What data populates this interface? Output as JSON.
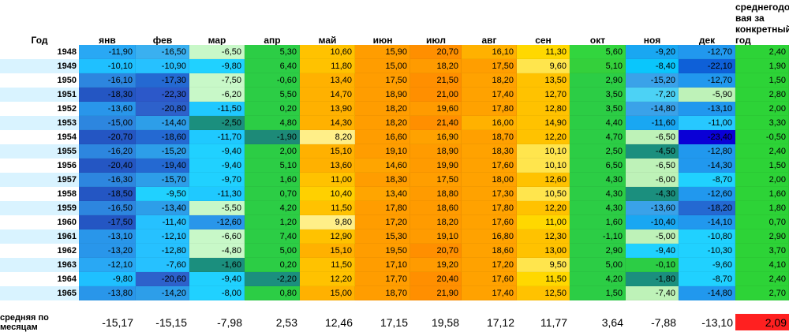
{
  "headers": {
    "year": "Год",
    "months": [
      "янв",
      "фев",
      "мар",
      "апр",
      "май",
      "июн",
      "июл",
      "авг",
      "сен",
      "окт",
      "ноя",
      "дек"
    ],
    "annual_lines": [
      "среднегодо",
      "вая за",
      "конкретный",
      "год"
    ]
  },
  "rows": [
    {
      "year": "1948",
      "values": [
        "-11,90",
        "-16,50",
        "-6,50",
        "5,30",
        "10,60",
        "15,90",
        "20,70",
        "16,10",
        "11,30",
        "5,60",
        "-9,20",
        "-12,70"
      ],
      "annual": "2,40",
      "colors": [
        "#29a8f4",
        "#3ab0f0",
        "#c8f8c8",
        "#2ccd45",
        "#ffc200",
        "#ff9d00",
        "#ff8f00",
        "#ffb100",
        "#ffd800",
        "#32d53e",
        "#19a7f2",
        "#2198ee"
      ],
      "annual_color": "#2dd337"
    },
    {
      "year": "1949",
      "values": [
        "-10,10",
        "-10,90",
        "-9,80",
        "6,40",
        "11,80",
        "15,00",
        "18,20",
        "17,50",
        "9,60",
        "5,10",
        "-8,40",
        "-22,10"
      ],
      "annual": "1,90",
      "colors": [
        "#1fc0ff",
        "#26c1ff",
        "#20d1ff",
        "#2ccd45",
        "#ffc200",
        "#ff9d00",
        "#ff9b00",
        "#ff9e00",
        "#ffe54d",
        "#34d03b",
        "#0ac6fc",
        "#0e60d8"
      ],
      "annual_color": "#2dd337"
    },
    {
      "year": "1950",
      "values": [
        "-16,10",
        "-17,30",
        "-7,50",
        "-0,60",
        "13,40",
        "17,50",
        "21,50",
        "18,20",
        "13,50",
        "2,90",
        "-15,20",
        "-12,70"
      ],
      "annual": "1,50",
      "colors": [
        "#2d86df",
        "#2469d2",
        "#c8f8c8",
        "#2ccd45",
        "#ffb100",
        "#ff9d00",
        "#ff8f00",
        "#ffa200",
        "#ffc200",
        "#2ccd45",
        "#3aa2e9",
        "#2198ee"
      ],
      "annual_color": "#2dd337"
    },
    {
      "year": "1951",
      "values": [
        "-18,30",
        "-22,30",
        "-6,20",
        "5,50",
        "14,70",
        "18,90",
        "21,00",
        "17,40",
        "12,70",
        "3,50",
        "-7,20",
        "-5,90"
      ],
      "annual": "2,80",
      "colors": [
        "#2456c3",
        "#2c58c9",
        "#c8f8c8",
        "#2ccd45",
        "#ffb100",
        "#ff9d00",
        "#ff8f00",
        "#ffa200",
        "#ffc200",
        "#2ccd45",
        "#4cd2f5",
        "#bef2b8"
      ],
      "annual_color": "#2dd337"
    },
    {
      "year": "1952",
      "values": [
        "-13,60",
        "-20,80",
        "-11,50",
        "0,20",
        "13,90",
        "18,20",
        "19,60",
        "17,80",
        "12,80",
        "3,50",
        "-14,80",
        "-13,10"
      ],
      "annual": "2,00",
      "colors": [
        "#2996ea",
        "#2d61cb",
        "#20c8ff",
        "#2ccd45",
        "#ffb100",
        "#ff9d00",
        "#ff9b00",
        "#ffa200",
        "#ffc200",
        "#2ccd45",
        "#3aa2e9",
        "#2198ee"
      ],
      "annual_color": "#2dd337"
    },
    {
      "year": "1953",
      "values": [
        "-15,00",
        "-14,40",
        "-2,50",
        "4,80",
        "14,30",
        "18,20",
        "21,40",
        "16,00",
        "14,90",
        "4,40",
        "-11,60",
        "-11,00"
      ],
      "annual": "3,30",
      "colors": [
        "#2d86df",
        "#2d9ee9",
        "#1b8f7e",
        "#2ccd45",
        "#ffb100",
        "#ff9d00",
        "#ff8f00",
        "#ffb100",
        "#ffc200",
        "#2ccd45",
        "#19a7f2",
        "#27c8ff"
      ],
      "annual_color": "#2dd337"
    },
    {
      "year": "1954",
      "values": [
        "-20,70",
        "-18,60",
        "-11,70",
        "-1,90",
        "8,20",
        "16,60",
        "16,90",
        "18,70",
        "12,20",
        "4,70",
        "-6,50",
        "-23,40"
      ],
      "annual": "-0,50",
      "colors": [
        "#2456c3",
        "#2469d2",
        "#1fc9ff",
        "#1d8a78",
        "#ffef88",
        "#ff9d00",
        "#ffa200",
        "#ffa000",
        "#ffc200",
        "#2ccd45",
        "#bef2b8",
        "#0a00d6"
      ],
      "annual_color": "#2dd337"
    },
    {
      "year": "1955",
      "values": [
        "-16,20",
        "-15,20",
        "-9,40",
        "2,00",
        "15,10",
        "19,10",
        "18,90",
        "18,30",
        "10,10",
        "2,50",
        "-4,50",
        "-12,80"
      ],
      "annual": "2,40",
      "colors": [
        "#2d86df",
        "#2d9ee9",
        "#20d1ff",
        "#2ccd45",
        "#ffb100",
        "#ff9d00",
        "#ff9b00",
        "#ffa200",
        "#ffe54d",
        "#2ccd45",
        "#1b8f7e",
        "#2198ee"
      ],
      "annual_color": "#2dd337"
    },
    {
      "year": "1956",
      "values": [
        "-20,40",
        "-19,40",
        "-9,40",
        "5,10",
        "13,60",
        "14,60",
        "19,90",
        "17,60",
        "10,10",
        "6,50",
        "-6,50",
        "-14,30"
      ],
      "annual": "1,50",
      "colors": [
        "#2456c3",
        "#2469d2",
        "#20d1ff",
        "#2ccd45",
        "#ffb100",
        "#ffa500",
        "#ff9b00",
        "#ffa200",
        "#ffe54d",
        "#2ccd45",
        "#bef2b8",
        "#2198ee"
      ],
      "annual_color": "#2dd337"
    },
    {
      "year": "1957",
      "values": [
        "-16,30",
        "-15,70",
        "-9,70",
        "1,60",
        "11,00",
        "18,30",
        "17,50",
        "18,00",
        "12,60",
        "4,30",
        "-6,00",
        "-8,70"
      ],
      "annual": "2,00",
      "colors": [
        "#2d86df",
        "#2d9ee9",
        "#20d1ff",
        "#2ccd45",
        "#ffc200",
        "#ff9d00",
        "#ff9e00",
        "#ffa200",
        "#ffc200",
        "#2ccd45",
        "#bef2b8",
        "#20d1ff"
      ],
      "annual_color": "#2dd337"
    },
    {
      "year": "1958",
      "values": [
        "-18,50",
        "-9,50",
        "-11,30",
        "0,70",
        "10,40",
        "13,40",
        "18,80",
        "17,30",
        "10,50",
        "4,30",
        "-4,30",
        "-12,60"
      ],
      "annual": "1,60",
      "colors": [
        "#2456c3",
        "#20d1ff",
        "#1fc9ff",
        "#2ccd45",
        "#ffd000",
        "#ffa500",
        "#ff9b00",
        "#ffa200",
        "#ffe54d",
        "#2ccd45",
        "#1b8f7e",
        "#2198ee"
      ],
      "annual_color": "#2dd337"
    },
    {
      "year": "1959",
      "values": [
        "-16,50",
        "-13,40",
        "-5,50",
        "4,20",
        "11,50",
        "17,80",
        "18,60",
        "17,80",
        "12,20",
        "4,30",
        "-13,60",
        "-18,20"
      ],
      "annual": "1,80",
      "colors": [
        "#2d86df",
        "#2d9ee9",
        "#c8f8c8",
        "#2ccd45",
        "#ffc200",
        "#ff9d00",
        "#ff9b00",
        "#ffa200",
        "#ffc200",
        "#2ccd45",
        "#3aa2e9",
        "#2469d2"
      ],
      "annual_color": "#2dd337"
    },
    {
      "year": "1960",
      "values": [
        "-17,50",
        "-11,40",
        "-12,60",
        "1,20",
        "9,80",
        "17,20",
        "18,20",
        "17,60",
        "11,00",
        "1,60",
        "-10,40",
        "-14,10"
      ],
      "annual": "0,70",
      "colors": [
        "#2456c3",
        "#26c1ff",
        "#2996ea",
        "#2ccd45",
        "#ffef88",
        "#ff9d00",
        "#ff9b00",
        "#ffa200",
        "#ffd800",
        "#2ccd45",
        "#19a7f2",
        "#2198ee"
      ],
      "annual_color": "#2dd337"
    },
    {
      "year": "1961",
      "values": [
        "-13,10",
        "-12,10",
        "-6,60",
        "7,40",
        "12,90",
        "15,30",
        "19,10",
        "16,80",
        "12,30",
        "-1,10",
        "-5,00",
        "-10,80"
      ],
      "annual": "2,90",
      "colors": [
        "#2996ea",
        "#26c1ff",
        "#c8f8c8",
        "#2ccd45",
        "#ffc200",
        "#ff9d00",
        "#ff9b00",
        "#ffa200",
        "#ffc200",
        "#2ccd45",
        "#bef2b8",
        "#20d1ff"
      ],
      "annual_color": "#2dd337"
    },
    {
      "year": "1962",
      "values": [
        "-13,20",
        "-12,80",
        "-4,80",
        "5,00",
        "15,10",
        "19,50",
        "20,70",
        "18,60",
        "13,00",
        "2,90",
        "-9,40",
        "-10,30"
      ],
      "annual": "3,70",
      "colors": [
        "#2996ea",
        "#26c1ff",
        "#c8f8c8",
        "#2ccd45",
        "#ffb100",
        "#ff9d00",
        "#ff8f00",
        "#ffa200",
        "#ffc200",
        "#2ccd45",
        "#20d1ff",
        "#20d1ff"
      ],
      "annual_color": "#2dd337"
    },
    {
      "year": "1963",
      "values": [
        "-12,10",
        "-7,60",
        "-1,60",
        "0,20",
        "11,50",
        "17,10",
        "19,20",
        "17,20",
        "9,50",
        "5,00",
        "-0,10",
        "-9,60"
      ],
      "annual": "4,10",
      "colors": [
        "#29a8f4",
        "#26c1ff",
        "#1b8f7e",
        "#2ccd45",
        "#ffc200",
        "#ff9d00",
        "#ff9b00",
        "#ffa200",
        "#ffe54d",
        "#2ccd45",
        "#2ccd45",
        "#20d1ff"
      ],
      "annual_color": "#2dd337"
    },
    {
      "year": "1964",
      "values": [
        "-9,80",
        "-20,60",
        "-9,40",
        "-2,20",
        "12,20",
        "17,70",
        "20,40",
        "17,60",
        "11,50",
        "4,20",
        "-1,80",
        "-8,70"
      ],
      "annual": "2,40",
      "colors": [
        "#1fc0ff",
        "#2d61cb",
        "#20d1ff",
        "#1b8f7e",
        "#ffc200",
        "#ff9d00",
        "#ff8f00",
        "#ffa200",
        "#ffd800",
        "#2ccd45",
        "#1b8f7e",
        "#20d1ff"
      ],
      "annual_color": "#2dd337"
    },
    {
      "year": "1965",
      "values": [
        "-13,80",
        "-14,20",
        "-8,00",
        "0,80",
        "15,00",
        "18,70",
        "21,90",
        "17,40",
        "12,50",
        "1,50",
        "-7,40",
        "-14,80"
      ],
      "annual": "2,70",
      "colors": [
        "#2996ea",
        "#2d9ee9",
        "#20d1ff",
        "#2ccd45",
        "#ffb100",
        "#ff9d00",
        "#ff8f00",
        "#ffa200",
        "#ffc200",
        "#2ccd45",
        "#bef2b8",
        "#2198ee"
      ],
      "annual_color": "#2dd337"
    }
  ],
  "averages": {
    "label": "средняя по месяцам",
    "values": [
      "-15,17",
      "-15,15",
      "-7,98",
      "2,53",
      "12,46",
      "17,15",
      "19,58",
      "17,12",
      "11,77",
      "3,64",
      "-7,88",
      "-13,10"
    ],
    "overall": "2,09",
    "overall_color": "#ff2020"
  }
}
